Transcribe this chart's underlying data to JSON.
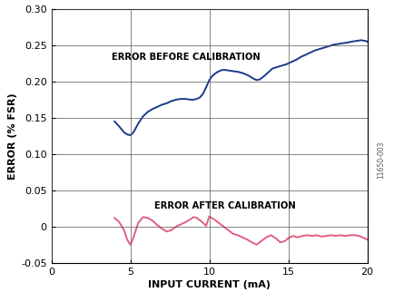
{
  "title": "",
  "xlabel": "INPUT CURRENT (mA)",
  "ylabel": "ERROR (% FSR)",
  "xlim": [
    0,
    20
  ],
  "ylim": [
    -0.05,
    0.3
  ],
  "yticks": [
    -0.05,
    0,
    0.05,
    0.1,
    0.15,
    0.2,
    0.25,
    0.3
  ],
  "xticks": [
    0,
    5,
    10,
    15,
    20
  ],
  "label_before": "ERROR BEFORE CALIBRATION",
  "label_after": "ERROR AFTER CALIBRATION",
  "color_before": "#1a3a8a",
  "color_after": "#e06080",
  "watermark": "11650-003",
  "before_x": [
    4.0,
    4.3,
    4.6,
    4.8,
    5.0,
    5.2,
    5.5,
    5.8,
    6.1,
    6.4,
    6.7,
    7.0,
    7.3,
    7.6,
    7.9,
    8.2,
    8.5,
    8.8,
    9.0,
    9.2,
    9.4,
    9.6,
    9.8,
    10.0,
    10.2,
    10.5,
    10.8,
    11.0,
    11.3,
    11.6,
    11.9,
    12.2,
    12.5,
    12.8,
    13.0,
    13.2,
    13.5,
    13.8,
    14.0,
    14.3,
    14.6,
    14.9,
    15.2,
    15.5,
    15.8,
    16.1,
    16.4,
    16.7,
    17.0,
    17.3,
    17.6,
    17.9,
    18.2,
    18.5,
    18.8,
    19.0,
    19.3,
    19.6,
    19.9,
    20.0
  ],
  "before_y": [
    0.145,
    0.138,
    0.13,
    0.127,
    0.126,
    0.13,
    0.142,
    0.152,
    0.158,
    0.162,
    0.165,
    0.168,
    0.17,
    0.173,
    0.175,
    0.176,
    0.176,
    0.175,
    0.175,
    0.176,
    0.178,
    0.183,
    0.192,
    0.202,
    0.208,
    0.213,
    0.216,
    0.216,
    0.215,
    0.214,
    0.213,
    0.211,
    0.208,
    0.204,
    0.202,
    0.203,
    0.208,
    0.214,
    0.218,
    0.22,
    0.222,
    0.224,
    0.227,
    0.23,
    0.234,
    0.237,
    0.24,
    0.243,
    0.245,
    0.247,
    0.249,
    0.251,
    0.252,
    0.253,
    0.254,
    0.255,
    0.256,
    0.257,
    0.256,
    0.255
  ],
  "after_x": [
    4.0,
    4.3,
    4.6,
    4.8,
    5.0,
    5.2,
    5.5,
    5.8,
    6.1,
    6.4,
    6.7,
    7.0,
    7.3,
    7.6,
    7.9,
    8.2,
    8.5,
    8.8,
    9.0,
    9.2,
    9.5,
    9.8,
    10.0,
    10.3,
    10.6,
    10.9,
    11.2,
    11.5,
    11.8,
    12.1,
    12.4,
    12.7,
    13.0,
    13.3,
    13.6,
    13.9,
    14.2,
    14.5,
    14.8,
    15.0,
    15.3,
    15.6,
    15.9,
    16.2,
    16.5,
    16.8,
    17.1,
    17.4,
    17.7,
    18.0,
    18.3,
    18.6,
    18.9,
    19.2,
    19.5,
    19.8,
    20.0
  ],
  "after_y": [
    0.012,
    0.006,
    -0.005,
    -0.018,
    -0.025,
    -0.015,
    0.005,
    0.013,
    0.012,
    0.008,
    0.002,
    -0.003,
    -0.007,
    -0.005,
    0.0,
    0.003,
    0.006,
    0.01,
    0.013,
    0.012,
    0.007,
    0.001,
    0.014,
    0.01,
    0.005,
    0.0,
    -0.005,
    -0.01,
    -0.012,
    -0.015,
    -0.018,
    -0.022,
    -0.025,
    -0.02,
    -0.015,
    -0.012,
    -0.016,
    -0.022,
    -0.02,
    -0.016,
    -0.013,
    -0.015,
    -0.013,
    -0.012,
    -0.013,
    -0.012,
    -0.014,
    -0.013,
    -0.012,
    -0.013,
    -0.012,
    -0.013,
    -0.012,
    -0.012,
    -0.013,
    -0.016,
    -0.018
  ]
}
